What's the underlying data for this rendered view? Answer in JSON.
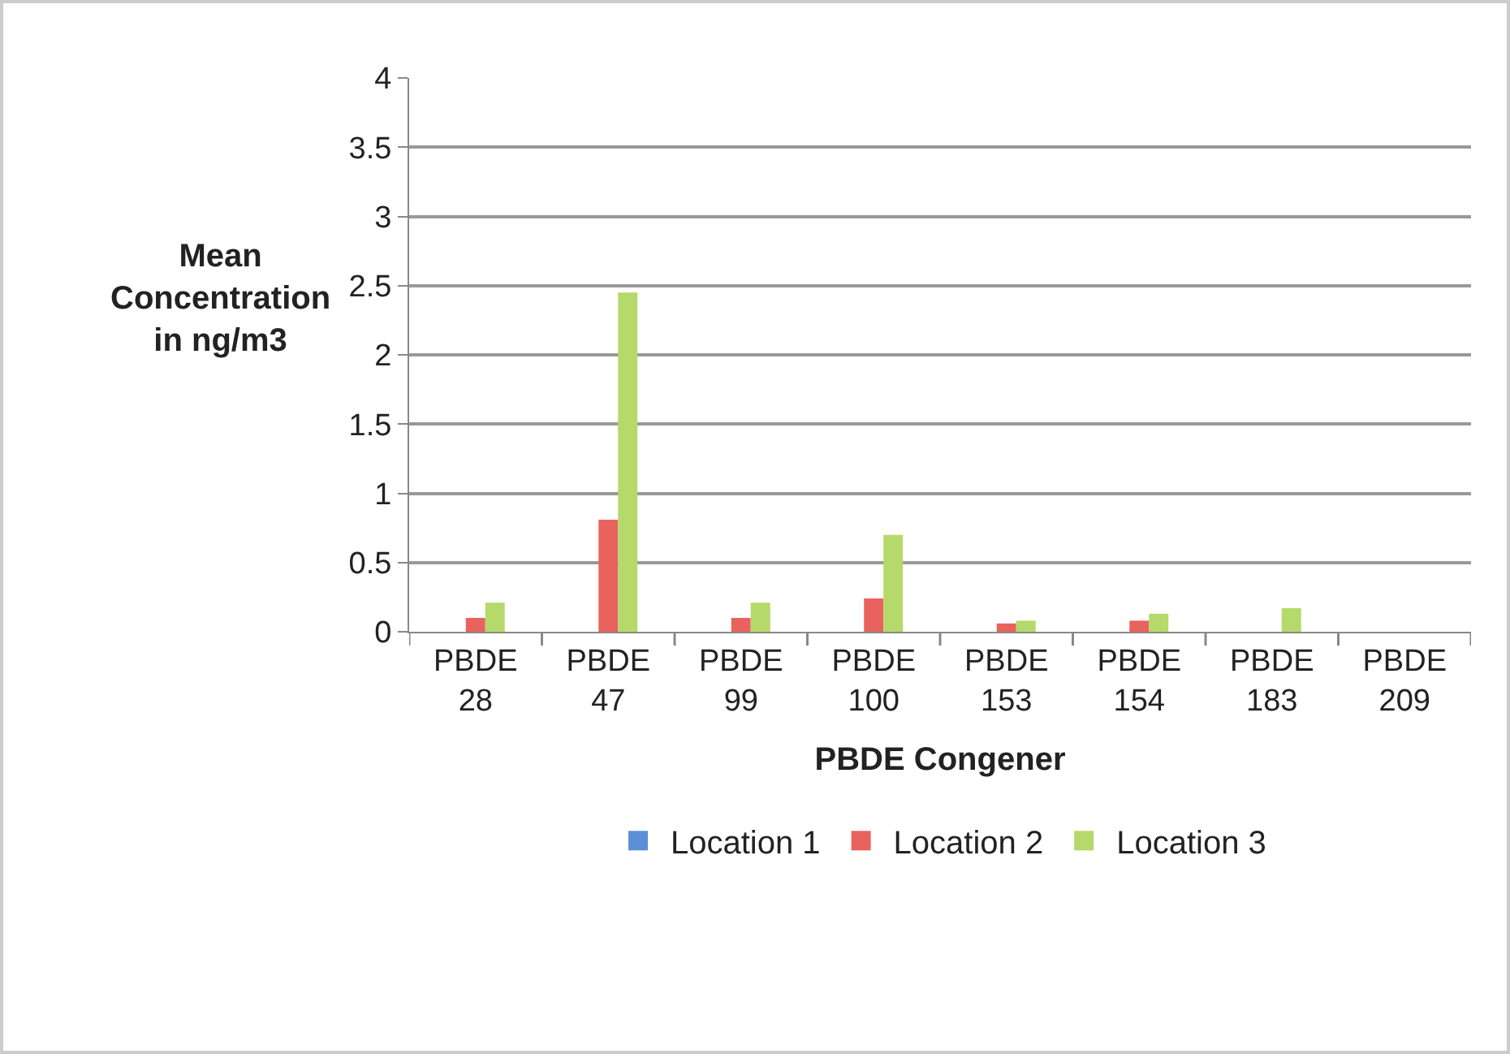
{
  "chart_data": {
    "type": "bar",
    "xlabel": "PBDE Congener",
    "ylabel": "Mean Concentration in ng/m3",
    "categories": [
      "PBDE 28",
      "PBDE 47",
      "PBDE 99",
      "PBDE 100",
      "PBDE 153",
      "PBDE 154",
      "PBDE 183",
      "PBDE 209"
    ],
    "series": [
      {
        "name": "Location 1",
        "color": "#5b8fd6",
        "values": [
          0,
          0,
          0,
          0,
          0,
          0,
          0,
          0
        ]
      },
      {
        "name": "Location 2",
        "color": "#e8625e",
        "values": [
          0.1,
          0.81,
          0.1,
          0.24,
          0.06,
          0.08,
          0,
          0
        ]
      },
      {
        "name": "Location 3",
        "color": "#b5d96a",
        "values": [
          0.21,
          2.45,
          0.21,
          0.7,
          0.08,
          0.13,
          0.17,
          0
        ]
      }
    ],
    "ylim": [
      0,
      4
    ],
    "yticks": [
      0,
      0.5,
      1,
      1.5,
      2,
      2.5,
      3,
      3.5,
      4
    ],
    "grid": "y",
    "legend": "bottom"
  }
}
